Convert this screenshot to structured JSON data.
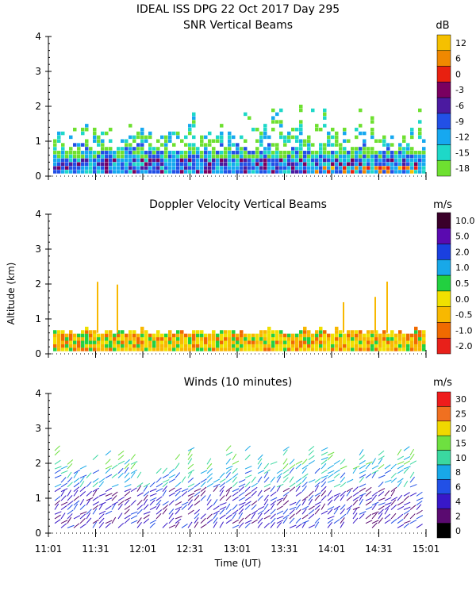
{
  "title": "IDEAL ISS DPG  22 Oct 2017 Day 295",
  "ylabel": "Altitude (km)",
  "xlabel": "Time (UT)",
  "x_ticks": [
    "11:01",
    "11:31",
    "12:01",
    "12:31",
    "13:01",
    "13:31",
    "14:01",
    "14:31",
    "15:01"
  ],
  "chart_data": [
    {
      "type": "heatmap",
      "title": "SNR Vertical Beams",
      "ylim": [
        0,
        4
      ],
      "y_ticks": [
        0,
        1,
        2,
        3,
        4
      ],
      "colorbar": {
        "unit": "dB",
        "labels": [
          "12",
          "6",
          "0",
          "-3",
          "-6",
          "-9",
          "-12",
          "-15",
          "-18"
        ],
        "colors": [
          "#f5c000",
          "#f08800",
          "#e82010",
          "#7a0060",
          "#4b1aa0",
          "#2250e6",
          "#16a8f0",
          "#1ed8c8",
          "#6ee030"
        ]
      },
      "data_summary": "Returns span 0.1-1.6 km through most of the period with sparse echoes up to about 2.2 km; strongest (warm colors) near the surface late in the period, weak green returns aloft."
    },
    {
      "type": "heatmap",
      "title": "Doppler Velocity Vertical Beams",
      "ylim": [
        0,
        4
      ],
      "y_ticks": [
        0,
        1,
        2,
        3,
        4
      ],
      "colorbar": {
        "unit": "m/s",
        "labels": [
          "10.0",
          "5.0",
          "2.0",
          "1.0",
          "0.5",
          "0.0",
          "-0.5",
          "-1.0",
          "-2.0"
        ],
        "colors": [
          "#3a002a",
          "#5a0ab0",
          "#1a40e0",
          "#18a8e8",
          "#22d040",
          "#f0e000",
          "#f8b800",
          "#f06a00",
          "#e8201a"
        ]
      },
      "data_summary": "Mostly near-zero velocities (yellow/orange) in the lowest 0.7 km, isolated columns reaching about 2.2 km."
    },
    {
      "type": "scatter",
      "title": "Winds (10 minutes)",
      "ylim": [
        0,
        4
      ],
      "y_ticks": [
        0,
        1,
        2,
        3,
        4
      ],
      "colorbar": {
        "unit": "m/s",
        "labels": [
          "30",
          "25",
          "20",
          "15",
          "10",
          "8",
          "6",
          "4",
          "2",
          "0"
        ],
        "colors": [
          "#ee1c1c",
          "#f07020",
          "#f0d800",
          "#6ee040",
          "#3ad8a0",
          "#18a8e8",
          "#2250e6",
          "#3818c8",
          "#5a0a70",
          "#000000"
        ]
      },
      "data_summary": "Wind barbs every 10 minutes from about 0.1 to 2.5 km; light winds (2-6 m/s, dark blue/purple) below 1.5 km, stronger 10-20 m/s (cyan/green) above 1.5 km."
    }
  ]
}
